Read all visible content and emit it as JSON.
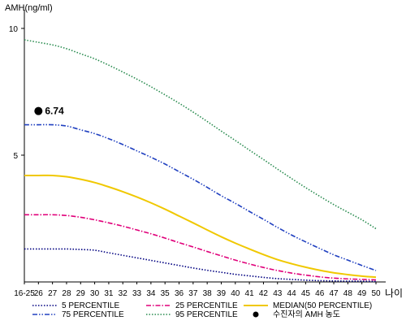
{
  "chart_data": {
    "type": "line",
    "ylabel": "AMH(ng/ml)",
    "xlabel": "나이",
    "categories": [
      "16-25",
      "26",
      "27",
      "28",
      "29",
      "30",
      "31",
      "32",
      "33",
      "34",
      "35",
      "36",
      "37",
      "38",
      "39",
      "40",
      "41",
      "42",
      "43",
      "44",
      "45",
      "46",
      "47",
      "48",
      "49",
      "50"
    ],
    "ylim": [
      0,
      10.8
    ],
    "yticks": [
      5,
      10
    ],
    "grid": false,
    "legend_position": "bottom",
    "series": [
      {
        "name": "5 PERCENTILE",
        "color": "#000080",
        "dash": "dotted",
        "values": [
          1.3,
          1.3,
          1.3,
          1.3,
          1.28,
          1.25,
          1.15,
          1.05,
          0.95,
          0.85,
          0.75,
          0.65,
          0.55,
          0.46,
          0.38,
          0.3,
          0.24,
          0.18,
          0.13,
          0.1,
          0.07,
          0.05,
          0.04,
          0.03,
          0.03,
          0.02
        ]
      },
      {
        "name": "25 PERCENTILE",
        "color": "#e0007a",
        "dash": "dashdot",
        "values": [
          2.65,
          2.65,
          2.65,
          2.62,
          2.55,
          2.45,
          2.33,
          2.2,
          2.05,
          1.9,
          1.73,
          1.55,
          1.38,
          1.2,
          1.03,
          0.86,
          0.71,
          0.57,
          0.45,
          0.35,
          0.27,
          0.2,
          0.15,
          0.12,
          0.1,
          0.08
        ]
      },
      {
        "name": "75 PERCENTILE",
        "color": "#2040c0",
        "dash": "dashdotdot",
        "values": [
          6.2,
          6.2,
          6.2,
          6.15,
          6.0,
          5.85,
          5.65,
          5.42,
          5.17,
          4.92,
          4.65,
          4.35,
          4.05,
          3.73,
          3.4,
          3.1,
          2.78,
          2.47,
          2.15,
          1.85,
          1.58,
          1.32,
          1.07,
          0.86,
          0.65,
          0.45
        ]
      },
      {
        "name": "95 PERCENTILE",
        "color": "#2a8c50",
        "dash": "dotted",
        "values": [
          9.55,
          9.45,
          9.35,
          9.2,
          9.0,
          8.8,
          8.55,
          8.28,
          8.0,
          7.7,
          7.38,
          7.05,
          6.7,
          6.33,
          5.95,
          5.58,
          5.2,
          4.83,
          4.45,
          4.08,
          3.72,
          3.38,
          3.05,
          2.75,
          2.45,
          2.1
        ]
      },
      {
        "name": "MEDIAN(50 PERCENTILE)",
        "color": "#f0c800",
        "dash": "solid",
        "values": [
          4.2,
          4.2,
          4.2,
          4.15,
          4.05,
          3.92,
          3.75,
          3.56,
          3.35,
          3.12,
          2.87,
          2.6,
          2.33,
          2.05,
          1.78,
          1.53,
          1.3,
          1.08,
          0.88,
          0.72,
          0.58,
          0.46,
          0.36,
          0.29,
          0.23,
          0.19
        ]
      }
    ],
    "marker": {
      "label": "6.74",
      "legend": "수진자의 AMH 농도",
      "x_index": 1,
      "y": 6.74,
      "color": "#000000"
    }
  }
}
